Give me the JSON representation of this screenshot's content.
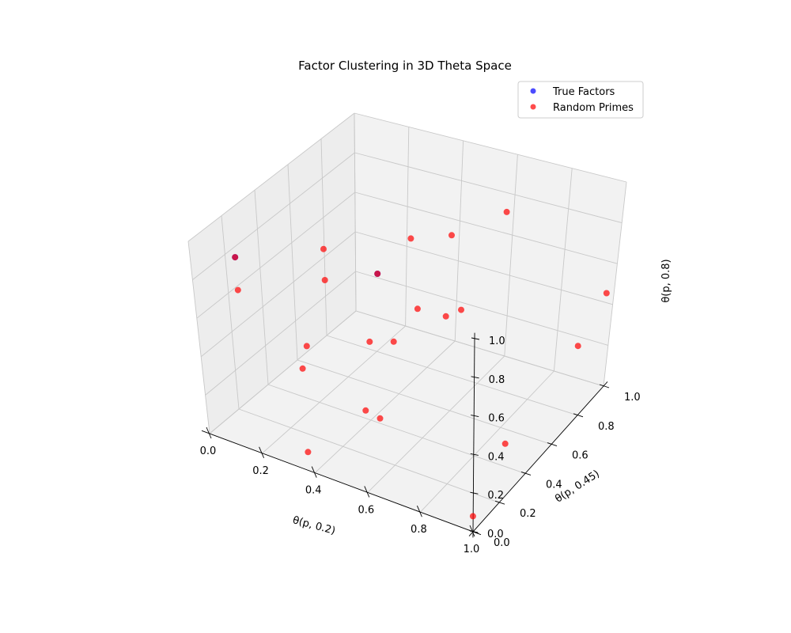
{
  "chart_data": {
    "type": "scatter",
    "projection": "3d",
    "title": "Factor Clustering in 3D Theta Space",
    "xlabel": "θ(p, 0.2)",
    "ylabel": "θ(p, 0.45)",
    "zlabel": "θ(p, 0.8)",
    "xlim": [
      0,
      1
    ],
    "ylim": [
      0,
      1
    ],
    "zlim": [
      0,
      1
    ],
    "xticks": [
      "0.0",
      "0.2",
      "0.4",
      "0.6",
      "0.8",
      "1.0"
    ],
    "yticks": [
      "0.0",
      "0.2",
      "0.4",
      "0.6",
      "0.8",
      "1.0"
    ],
    "zticks": [
      "0.0",
      "0.2",
      "0.4",
      "0.6",
      "0.8",
      "1.0"
    ],
    "grid": true,
    "legend_position": "upper right",
    "series": [
      {
        "name": "True Factors",
        "color": "#0000ff",
        "alpha": 0.7,
        "points": [
          {
            "x": 0.1,
            "y": 0.1,
            "z": 0.9
          },
          {
            "x": 0.36,
            "y": 0.53,
            "z": 0.64
          }
        ]
      },
      {
        "name": "Random Primes",
        "color": "#ff0000",
        "alpha": 0.7,
        "points": [
          {
            "x": 0.1,
            "y": 0.1,
            "z": 0.9
          },
          {
            "x": 0.3,
            "y": 0.3,
            "z": 0.9
          },
          {
            "x": 0.5,
            "y": 0.5,
            "z": 0.9
          },
          {
            "x": 0.1,
            "y": 0.1,
            "z": 0.73
          },
          {
            "x": 0.3,
            "y": 0.3,
            "z": 0.74
          },
          {
            "x": 0.52,
            "y": 0.73,
            "z": 0.76
          },
          {
            "x": 0.6,
            "y": 0.95,
            "z": 0.75
          },
          {
            "x": 0.36,
            "y": 0.53,
            "z": 0.64
          },
          {
            "x": 0.28,
            "y": 0.2,
            "z": 0.46
          },
          {
            "x": 0.47,
            "y": 0.6,
            "z": 0.46
          },
          {
            "x": 0.55,
            "y": 0.65,
            "z": 0.42
          },
          {
            "x": 0.58,
            "y": 0.7,
            "z": 0.43
          },
          {
            "x": 0.25,
            "y": 0.83,
            "z": 0.05
          },
          {
            "x": 0.16,
            "y": 0.82,
            "z": 0.02
          },
          {
            "x": 1.0,
            "y": 0.94,
            "z": 0.5
          },
          {
            "x": 0.95,
            "y": 0.86,
            "z": 0.28
          },
          {
            "x": 0.11,
            "y": 0.45,
            "z": 0.1
          },
          {
            "x": 0.38,
            "y": 0.4,
            "z": 0.04
          },
          {
            "x": 0.32,
            "y": 0.1,
            "z": 0.0
          },
          {
            "x": 0.48,
            "y": 0.32,
            "z": 0.1
          },
          {
            "x": 0.87,
            "y": 0.5,
            "z": 0.02
          },
          {
            "x": 0.96,
            "y": 0.08,
            "z": 0.0
          }
        ]
      }
    ]
  }
}
